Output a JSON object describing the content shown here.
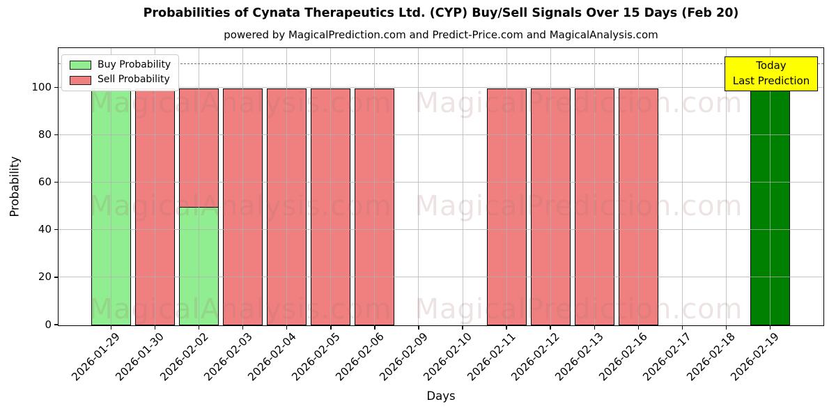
{
  "chart_data": {
    "type": "bar",
    "title": "Probabilities of Cynata Therapeutics Ltd. (CYP) Buy/Sell Signals Over 15 Days (Feb 20)",
    "subtitle": "powered by MagicalPrediction.com and Predict-Price.com and MagicalAnalysis.com",
    "xlabel": "Days",
    "ylabel": "Probability",
    "ylim": [
      0,
      116.6
    ],
    "yticks": [
      0,
      20,
      40,
      60,
      80,
      100
    ],
    "grid": true,
    "grid_color": "#b0b0b0",
    "dashed_line_y": 110,
    "legend_position": "upper-left",
    "categories": [
      "2026-01-29",
      "2026-01-30",
      "2026-02-02",
      "2026-02-03",
      "2026-02-04",
      "2026-02-05",
      "2026-02-06",
      "2026-02-09",
      "2026-02-10",
      "2026-02-11",
      "2026-02-12",
      "2026-02-13",
      "2026-02-16",
      "2026-02-17",
      "2026-02-18",
      "2026-02-19"
    ],
    "series": [
      {
        "name": "Buy Probability",
        "color": "#90EE90",
        "values": [
          100,
          0,
          50,
          0,
          0,
          0,
          0,
          0,
          0,
          0,
          0,
          0,
          0,
          0,
          0,
          100
        ]
      },
      {
        "name": "Sell Probability",
        "color": "#F08080",
        "values": [
          0,
          100,
          100,
          100,
          100,
          100,
          100,
          0,
          0,
          100,
          100,
          100,
          100,
          0,
          0,
          0
        ]
      }
    ],
    "today_annotation": {
      "index": 15,
      "line1": "Today",
      "line2": "Last Prediction",
      "bar_color": "#008000",
      "box_color": "#FFFF00"
    },
    "watermarks": [
      "MagicalAnalysis.com",
      "MagicalPrediction.com"
    ]
  }
}
